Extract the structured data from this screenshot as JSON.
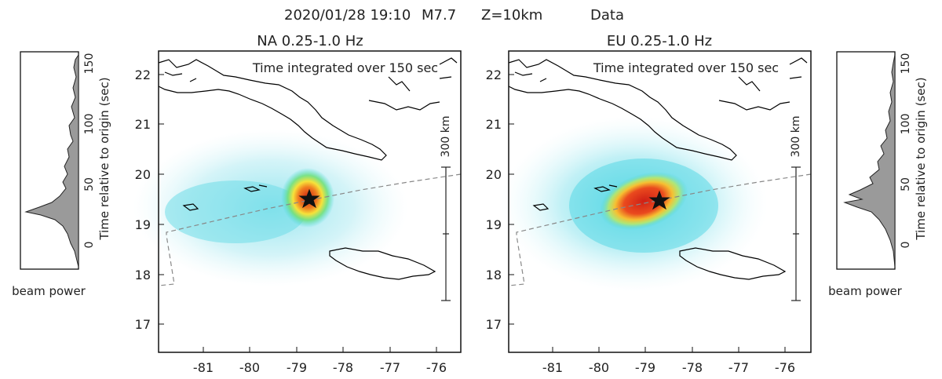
{
  "header": {
    "date_time": "2020/01/28 19:10",
    "magnitude": "M7.7",
    "depth": "Z=10km",
    "mode": "Data"
  },
  "maps": [
    {
      "title": "NA  0.25-1.0 Hz",
      "integration_note": "Time integrated over 150 sec",
      "scale_label": "300 km",
      "x_ticks": [
        "-81",
        "-80",
        "-79",
        "-78",
        "-77",
        "-76"
      ],
      "y_ticks": [
        "22",
        "21",
        "20",
        "19",
        "18",
        "17"
      ],
      "epicenter": {
        "lon": -78.7,
        "lat": 19.45
      }
    },
    {
      "title": "EU  0.25-1.0 Hz",
      "integration_note": "Time integrated over 150 sec",
      "scale_label": "300 km",
      "x_ticks": [
        "-81",
        "-80",
        "-79",
        "-78",
        "-77",
        "-76"
      ],
      "y_ticks": [
        "22",
        "21",
        "20",
        "19",
        "18",
        "17"
      ],
      "epicenter": {
        "lon": -78.7,
        "lat": 19.45
      }
    }
  ],
  "beam_panels": [
    {
      "side": "left",
      "xlabel": "beam power",
      "ylabel": "Time relative to origin (sec)",
      "ticks": [
        "0",
        "50",
        "100",
        "150"
      ]
    },
    {
      "side": "right",
      "xlabel": "beam power",
      "ylabel": "Time relative to origin (sec)",
      "ticks": [
        "0",
        "50",
        "100",
        "150"
      ]
    }
  ],
  "colors": {
    "low": "#c7f0f5",
    "mid": "#3fd6e3",
    "high": "#f7e23a",
    "peak": "#d6231b",
    "coast": "#000000",
    "fault": "#888888",
    "beam_fill": "#9a9a9a"
  }
}
